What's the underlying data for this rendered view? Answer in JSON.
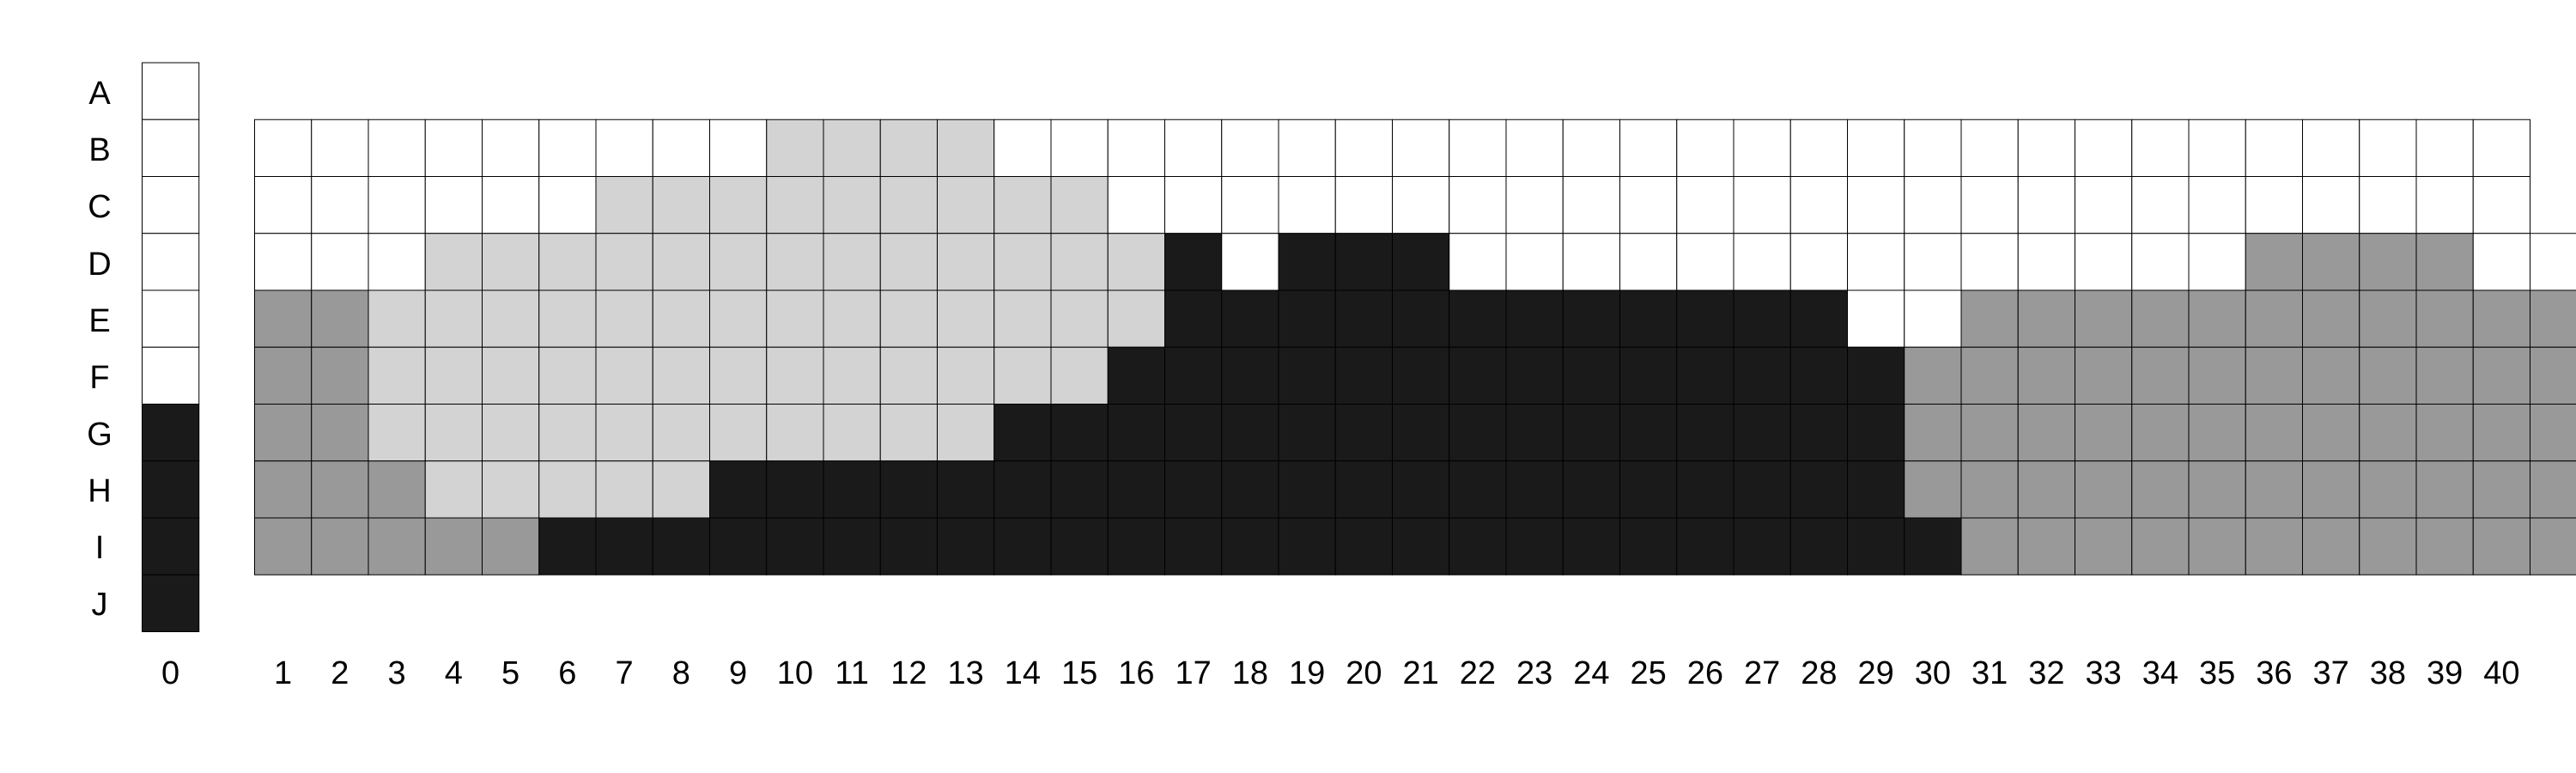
{
  "rows": [
    "A",
    "B",
    "C",
    "D",
    "E",
    "F",
    "G",
    "H",
    "I",
    "J"
  ],
  "columns": [
    "0",
    "1",
    "2",
    "3",
    "4",
    "5",
    "6",
    "7",
    "8",
    "9",
    "10",
    "11",
    "12",
    "13",
    "14",
    "15",
    "16",
    "17",
    "18",
    "19",
    "20",
    "21",
    "22",
    "23",
    "24",
    "25",
    "26",
    "27",
    "28",
    "29",
    "30",
    "31",
    "32",
    "33",
    "34",
    "35",
    "36",
    "37",
    "38",
    "39",
    "40"
  ],
  "palette": {
    "W": "#ffffff",
    "L": "#d3d3d3",
    "M": "#999999",
    "D": "#1a1a1a",
    "grid_line": "#000000"
  },
  "column_zero": {
    "row_start": "A",
    "cells": "WWWWWWDDDD"
  },
  "grid": {
    "row_start": "B",
    "rows": [
      "WWWWWWWWWLLLLWWWWWWWWWWWWWWWWWWWWWWWWWWW",
      "WWWWWWLLLLLLLLLWWWWWWWWWWWWWWWWWWWWWWWWW",
      "WWWLLLLLLLLLLLLLDWDDDWWWWWWWWWWWWWWMMMMWW",
      "MMLLLLLLLLLLLLLLDDDDDDDDDDDDWWMMMMMMMMMMM",
      "MMLLLLLLLLLLLLLDDDDDDDDDDDDDDMMMMMMMMMMMM",
      "MMLLLLLLLLLLLDDDDDDDDDDDDDDDDMMMMMMMMMMMM",
      "MMMLLLLLDDDDDDDDDDDDDDDDDDDDDMMMMMMMMMMMM",
      "MMMMMDDDDDDDDDDDDDDDDDDDDDDDDDMMMMMMMMMMM"
    ]
  }
}
